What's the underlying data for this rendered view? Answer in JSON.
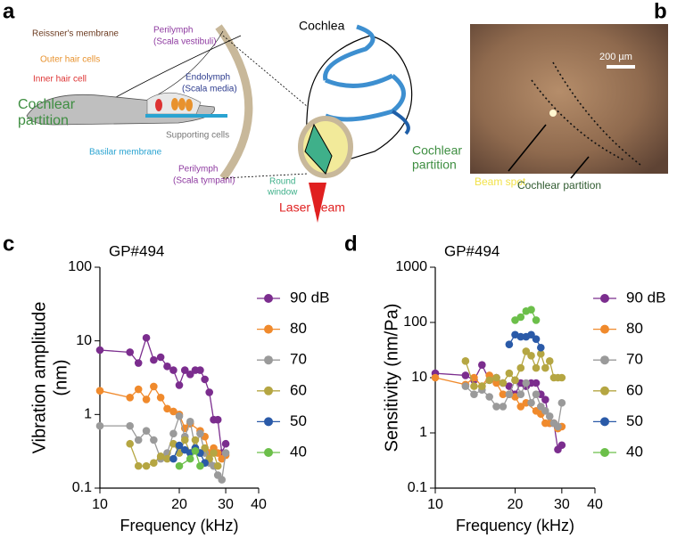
{
  "panels": {
    "a": "a",
    "b": "b",
    "c": "c",
    "d": "d"
  },
  "diagram": {
    "reissner": "Reissner's membrane",
    "perilymph_top": [
      "Perilymph",
      "(Scala vestibuli)"
    ],
    "outer_hair": "Outer hair cells",
    "endolymph": [
      "Endolymph",
      "(Scala media)"
    ],
    "inner_hair": "Inner hair cell",
    "partition_left": [
      "Cochlear",
      "partition"
    ],
    "supporting": "Supporting cells",
    "basilar": "Basilar membrane",
    "perilymph_bottom": [
      "Perilymph",
      "(Scala tympani)"
    ],
    "cochlea": "Cochlea",
    "partition_right": [
      "Cochlear",
      "partition"
    ],
    "round_window": [
      "Round",
      "window"
    ],
    "laser": "Laser beam"
  },
  "photo": {
    "scale": "200 µm",
    "beam_spot": "Beam spot",
    "partition": "Cochlear partition"
  },
  "chart_data": [
    {
      "type": "line",
      "title": "GP#494",
      "xlabel": "Frequency (kHz)",
      "ylabel": [
        "Vibration amplitude",
        "(nm)"
      ],
      "xscale": "log",
      "yscale": "log",
      "xlim": [
        10,
        40
      ],
      "xticks": [
        10,
        20,
        30,
        40
      ],
      "ylim": [
        0.1,
        100
      ],
      "yticks": [
        0.1,
        1,
        10,
        100
      ],
      "legend": "right",
      "series": [
        {
          "name": "90 dB",
          "color": "#7b2d8e",
          "x": [
            10,
            13,
            14,
            15,
            16,
            17,
            18,
            19,
            20,
            21,
            22,
            23,
            24,
            25,
            26,
            27,
            28,
            29,
            30
          ],
          "values": [
            7.5,
            7,
            5,
            11,
            5.5,
            6,
            4.5,
            4,
            2.5,
            4,
            3.5,
            4,
            4,
            3,
            2,
            0.85,
            0.85,
            0.3,
            0.4
          ]
        },
        {
          "name": "80",
          "color": "#f08a2c",
          "x": [
            10,
            13,
            14,
            15,
            16,
            17,
            18,
            19,
            20,
            21,
            22,
            24,
            25,
            26,
            27,
            28,
            29,
            30
          ],
          "values": [
            2.1,
            1.7,
            2.2,
            1.6,
            2.4,
            1.7,
            1.2,
            1.1,
            1.0,
            0.65,
            0.75,
            0.6,
            0.5,
            0.3,
            0.35,
            0.3,
            0.25,
            0.28
          ]
        },
        {
          "name": "70",
          "color": "#9a9a9a",
          "x": [
            10,
            13,
            14,
            15,
            16,
            17,
            18,
            19,
            20,
            21,
            22,
            23,
            24,
            25,
            26,
            27,
            28,
            29,
            30
          ],
          "values": [
            0.7,
            0.7,
            0.45,
            0.6,
            0.45,
            0.25,
            0.3,
            0.55,
            0.95,
            0.5,
            0.8,
            0.35,
            0.55,
            0.3,
            0.22,
            0.2,
            0.15,
            0.13,
            0.3
          ]
        },
        {
          "name": "60",
          "color": "#b5a642",
          "x": [
            13,
            14,
            15,
            16,
            17,
            18,
            19,
            20,
            21,
            22,
            23,
            24,
            25,
            26,
            27,
            28
          ],
          "values": [
            0.4,
            0.2,
            0.2,
            0.22,
            0.27,
            0.25,
            0.4,
            0.3,
            0.45,
            0.3,
            0.45,
            0.3,
            0.35,
            0.25,
            0.3,
            0.2
          ]
        },
        {
          "name": "50",
          "color": "#2a5aa8",
          "x": [
            19,
            20,
            21,
            22,
            23,
            24,
            25
          ],
          "values": [
            0.25,
            0.38,
            0.33,
            0.3,
            0.35,
            0.3,
            0.22
          ]
        },
        {
          "name": "40",
          "color": "#6cbf4a",
          "x": [
            20,
            22,
            23,
            24
          ],
          "values": [
            0.2,
            0.25,
            0.32,
            0.2
          ]
        }
      ]
    },
    {
      "type": "line",
      "title": "GP#494",
      "xlabel": "Frequency (kHz)",
      "ylabel": [
        "Sensitivity (nm/Pa)"
      ],
      "xscale": "log",
      "yscale": "log",
      "xlim": [
        10,
        40
      ],
      "xticks": [
        10,
        20,
        30,
        40
      ],
      "ylim": [
        0.1,
        1000
      ],
      "yticks": [
        0.1,
        1,
        10,
        100,
        1000
      ],
      "legend": "right",
      "series": [
        {
          "name": "90 dB",
          "color": "#7b2d8e",
          "x": [
            10,
            13,
            14,
            15,
            16,
            17,
            18,
            19,
            20,
            21,
            22,
            23,
            24,
            25,
            26,
            27,
            28,
            29,
            30
          ],
          "values": [
            12,
            11,
            9,
            17,
            9,
            10,
            8,
            7,
            5,
            8,
            7,
            8,
            8,
            5,
            4,
            1.5,
            1.5,
            0.5,
            0.6
          ]
        },
        {
          "name": "80",
          "color": "#f08a2c",
          "x": [
            10,
            13,
            14,
            15,
            16,
            17,
            18,
            19,
            20,
            21,
            22,
            24,
            25,
            26,
            27,
            28,
            29,
            30
          ],
          "values": [
            10,
            7.5,
            10,
            7,
            11,
            8,
            5,
            5,
            4.5,
            3,
            3.5,
            2.5,
            2.2,
            1.5,
            1.5,
            1.5,
            1.2,
            1.3
          ]
        },
        {
          "name": "70",
          "color": "#9a9a9a",
          "x": [
            13,
            14,
            15,
            16,
            17,
            18,
            19,
            20,
            21,
            22,
            23,
            24,
            25,
            26,
            27,
            28,
            29,
            30
          ],
          "values": [
            7,
            5,
            6,
            4.5,
            3,
            3,
            5,
            9,
            5,
            8,
            3.5,
            5,
            3,
            2.5,
            2,
            1.5,
            1.3,
            3.5
          ]
        },
        {
          "name": "60",
          "color": "#b5a642",
          "x": [
            13,
            14,
            15,
            16,
            17,
            18,
            19,
            20,
            21,
            22,
            23,
            24,
            25,
            26,
            27,
            28,
            29,
            30
          ],
          "values": [
            20,
            7,
            7,
            9,
            10,
            8,
            12,
            9,
            15,
            30,
            25,
            15,
            27,
            15,
            20,
            10,
            10,
            10
          ]
        },
        {
          "name": "50",
          "color": "#2a5aa8",
          "x": [
            19,
            20,
            21,
            22,
            23,
            24,
            25
          ],
          "values": [
            40,
            60,
            55,
            55,
            60,
            50,
            35
          ]
        },
        {
          "name": "40",
          "color": "#6cbf4a",
          "x": [
            20,
            21,
            22,
            23,
            24
          ],
          "values": [
            110,
            125,
            160,
            170,
            110
          ]
        }
      ]
    }
  ]
}
